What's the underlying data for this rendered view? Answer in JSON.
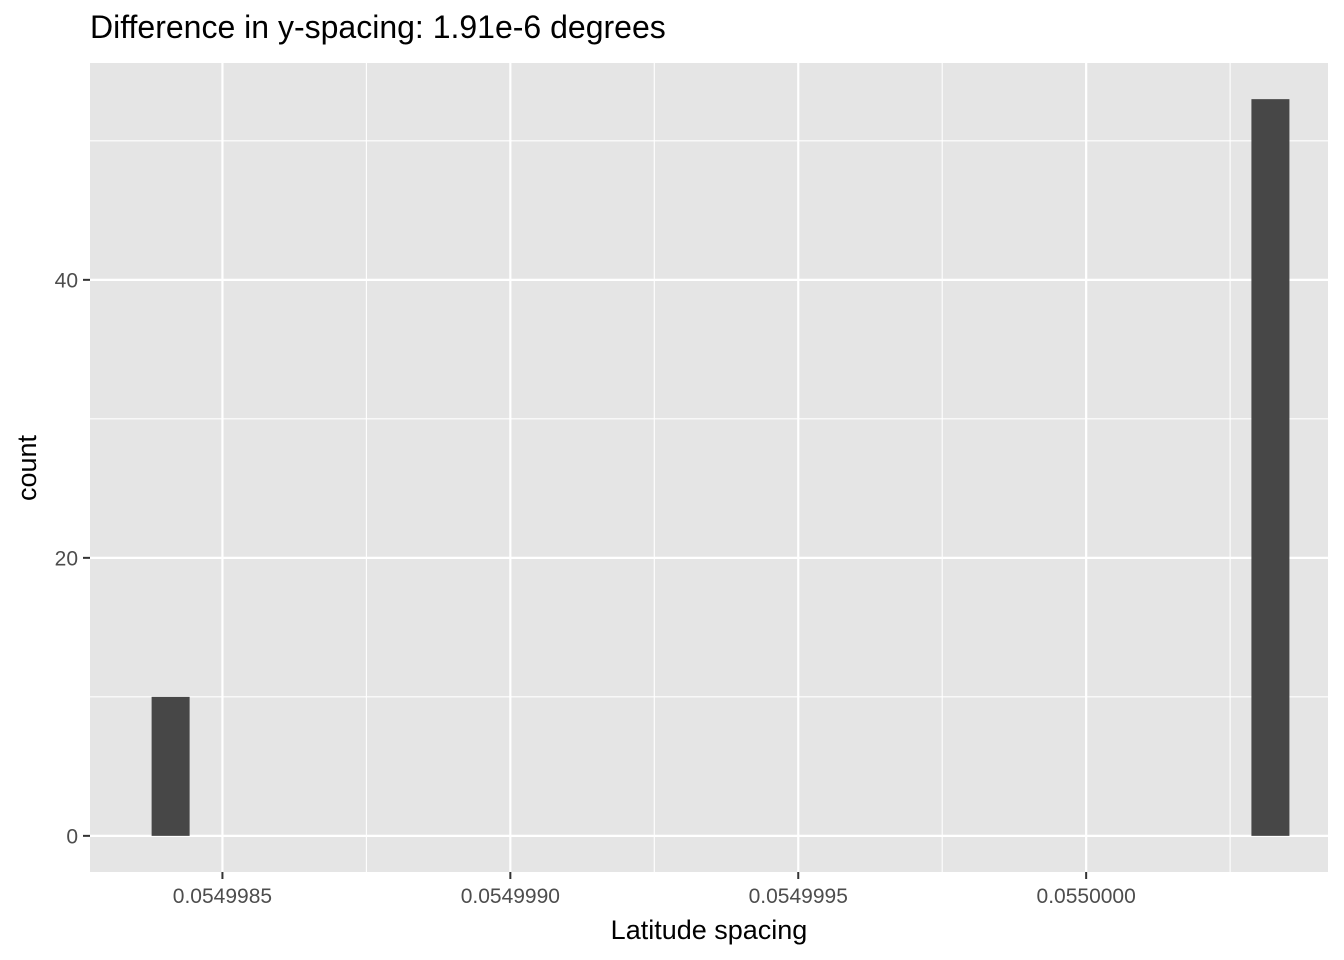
{
  "chart_data": {
    "type": "bar",
    "title": "Difference in y-spacing: 1.91e-6 degrees",
    "xlabel": "Latitude spacing",
    "ylabel": "count",
    "x_ticks": [
      {
        "value": 0.0549985,
        "label": "0.0549985"
      },
      {
        "value": 0.054999,
        "label": "0.0549990"
      },
      {
        "value": 0.0549995,
        "label": "0.0549995"
      },
      {
        "value": 0.055,
        "label": "0.0550000"
      }
    ],
    "y_ticks": [
      {
        "value": 0,
        "label": "0"
      },
      {
        "value": 20,
        "label": "20"
      },
      {
        "value": 40,
        "label": "40"
      }
    ],
    "xlim": [
      0.05499827,
      0.05500042
    ],
    "ylim": [
      -2.6,
      55.6
    ],
    "bin_width": 6.6e-08,
    "bars": [
      {
        "x": 0.05499841,
        "count": 10
      },
      {
        "x": 0.05500032,
        "count": 53
      }
    ],
    "colors": {
      "panel": "#e5e5e5",
      "grid": "#ffffff",
      "bar": "#474747",
      "tick_text": "#4d4d4d",
      "tick_mark": "#333333"
    },
    "grid": true,
    "legend": "none"
  }
}
